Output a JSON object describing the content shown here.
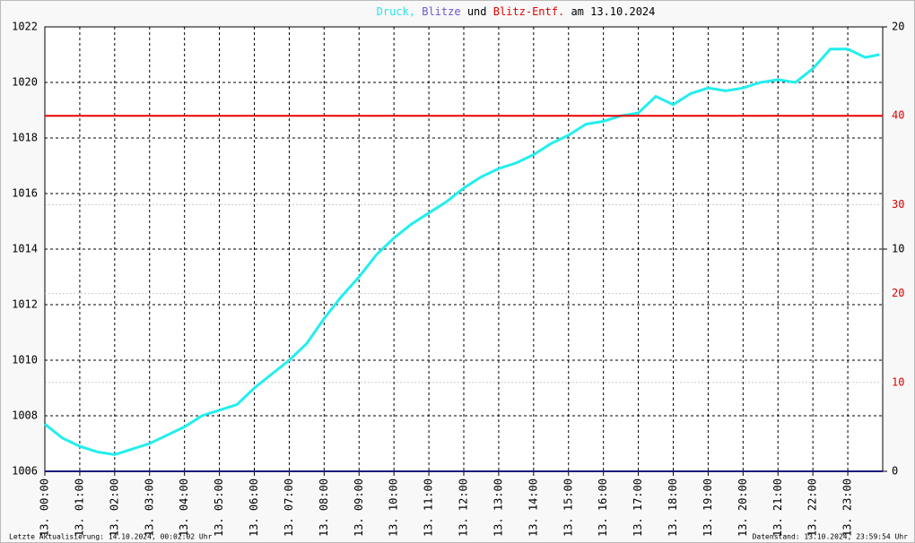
{
  "chart_data": {
    "type": "line",
    "title_parts": [
      {
        "text": "Druck,",
        "color": "#22e8e8"
      },
      {
        "text": "Blitze",
        "color": "#6a5acd"
      },
      {
        "text": "und",
        "color": "#000000"
      },
      {
        "text": "Blitz-Entf.",
        "color": "#dd0000"
      },
      {
        "text": "am 13.10.2024",
        "color": "#000000"
      }
    ],
    "x": [
      0,
      0.5,
      1,
      1.5,
      2,
      2.5,
      3,
      3.5,
      4,
      4.5,
      5,
      5.5,
      6,
      6.5,
      7,
      7.5,
      8,
      8.5,
      9,
      9.5,
      10,
      10.5,
      11,
      11.5,
      12,
      12.5,
      13,
      13.5,
      14,
      14.5,
      15,
      15.5,
      16,
      16.5,
      17,
      17.5,
      18,
      18.5,
      19,
      19.5,
      20,
      20.5,
      21,
      21.5,
      22,
      22.5,
      23,
      23.5,
      23.9
    ],
    "series": [
      {
        "name": "Druck",
        "color": "#22eeee",
        "values": [
          1007.7,
          1007.2,
          1006.9,
          1006.7,
          1006.6,
          1006.8,
          1007.0,
          1007.3,
          1007.6,
          1008.0,
          1008.2,
          1008.4,
          1009.0,
          1009.5,
          1010.0,
          1010.6,
          1011.5,
          1012.3,
          1013.0,
          1013.8,
          1014.4,
          1014.9,
          1015.3,
          1015.7,
          1016.2,
          1016.6,
          1016.9,
          1017.1,
          1017.4,
          1017.8,
          1018.1,
          1018.5,
          1018.6,
          1018.8,
          1018.9,
          1019.5,
          1019.2,
          1019.6,
          1019.8,
          1019.7,
          1019.8,
          1020.0,
          1020.1,
          1020.0,
          1020.5,
          1021.2,
          1021.2,
          1020.9,
          1021.0
        ]
      },
      {
        "name": "Blitze",
        "color": "#1a1a80",
        "axis": "y2",
        "x": [
          0,
          24
        ],
        "values": [
          0,
          0
        ]
      },
      {
        "name": "Blitz-Entf.",
        "color": "#ee0000",
        "axis": "y3",
        "x": [
          0,
          24
        ],
        "values": [
          40,
          40
        ]
      }
    ],
    "xlim": [
      0,
      24
    ],
    "xticks": [
      {
        "value": 0,
        "label": "13. 00:00"
      },
      {
        "value": 1,
        "label": "13. 01:00"
      },
      {
        "value": 2,
        "label": "13. 02:00"
      },
      {
        "value": 3,
        "label": "13. 03:00"
      },
      {
        "value": 4,
        "label": "13. 04:00"
      },
      {
        "value": 5,
        "label": "13. 05:00"
      },
      {
        "value": 6,
        "label": "13. 06:00"
      },
      {
        "value": 7,
        "label": "13. 07:00"
      },
      {
        "value": 8,
        "label": "13. 08:00"
      },
      {
        "value": 9,
        "label": "13. 09:00"
      },
      {
        "value": 10,
        "label": "13. 10:00"
      },
      {
        "value": 11,
        "label": "13. 11:00"
      },
      {
        "value": 12,
        "label": "13. 12:00"
      },
      {
        "value": 13,
        "label": "13. 13:00"
      },
      {
        "value": 14,
        "label": "13. 14:00"
      },
      {
        "value": 15,
        "label": "13. 15:00"
      },
      {
        "value": 16,
        "label": "13. 16:00"
      },
      {
        "value": 17,
        "label": "13. 17:00"
      },
      {
        "value": 18,
        "label": "13. 18:00"
      },
      {
        "value": 19,
        "label": "13. 19:00"
      },
      {
        "value": 20,
        "label": "13. 20:00"
      },
      {
        "value": 21,
        "label": "13. 21:00"
      },
      {
        "value": 22,
        "label": "13. 22:00"
      },
      {
        "value": 23,
        "label": "13. 23:00"
      }
    ],
    "ylim": [
      1006,
      1022
    ],
    "yticks": [
      1006,
      1008,
      1010,
      1012,
      1014,
      1016,
      1018,
      1020,
      1022
    ],
    "y2lim": [
      0,
      20
    ],
    "y2ticks": [
      0,
      10,
      20
    ],
    "y2color": "#000000",
    "y3lim": [
      0,
      50
    ],
    "y3ticks": [
      10,
      20,
      30,
      40
    ],
    "y3color": "#dd0000",
    "grid": true,
    "footer_left": "Letzte Aktualisierung: 14.10.2024, 00:02:02 Uhr",
    "footer_right": "Datenstand: 13.10.2024, 23:59:54 Uhr"
  }
}
